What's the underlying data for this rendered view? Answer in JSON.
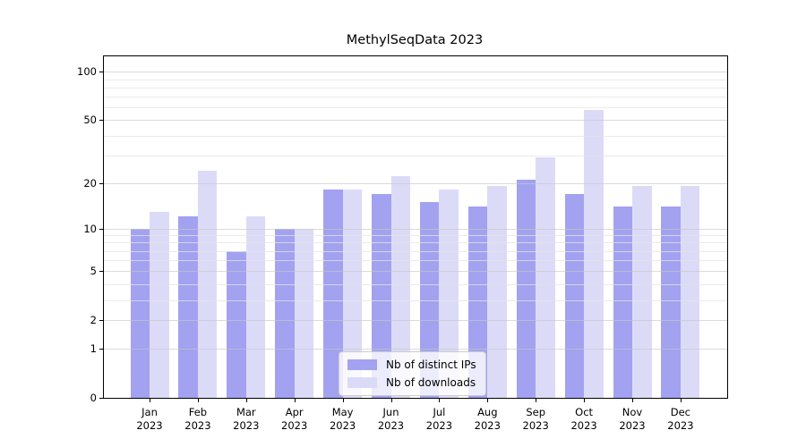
{
  "figure": {
    "title": "MethylSeqData 2023"
  },
  "chart_data": {
    "type": "bar",
    "title": "MethylSeqData 2023",
    "categories": [
      "Jan 2023",
      "Feb 2023",
      "Mar 2023",
      "Apr 2023",
      "May 2023",
      "Jun 2023",
      "Jul 2023",
      "Aug 2023",
      "Sep 2023",
      "Oct 2023",
      "Nov 2023",
      "Dec 2023"
    ],
    "month_labels": [
      "Jan",
      "Feb",
      "Mar",
      "Apr",
      "May",
      "Jun",
      "Jul",
      "Aug",
      "Sep",
      "Oct",
      "Nov",
      "Dec"
    ],
    "year_label": "2023",
    "series": [
      {
        "name": "Nb of distinct IPs",
        "color": "#a2a2f0",
        "values": [
          10,
          12,
          7,
          10,
          18,
          17,
          15,
          14,
          21,
          17,
          14,
          14
        ]
      },
      {
        "name": "Nb of downloads",
        "color": "#dbdbf8",
        "values": [
          13,
          24,
          12,
          10,
          18,
          22,
          18,
          19,
          29,
          58,
          19,
          19
        ]
      }
    ],
    "xlabel": "",
    "ylabel": "",
    "yscale": "log1p",
    "ylim": [
      0,
      125
    ],
    "yticks": [
      0,
      1,
      2,
      5,
      10,
      20,
      50,
      100
    ],
    "minor_grid_values": [
      3,
      4,
      6,
      7,
      8,
      9,
      30,
      40,
      60,
      70,
      80,
      90
    ],
    "grid": true,
    "legend_position": "lower center"
  },
  "colors": {
    "background": "#ffffff",
    "axis": "#000000",
    "major_grid": "rgba(200,200,200,0.65)",
    "minor_grid": "rgba(228,228,228,0.75)",
    "ips_bar": "#a2a2f0",
    "downloads_bar": "#dbdbf8"
  }
}
